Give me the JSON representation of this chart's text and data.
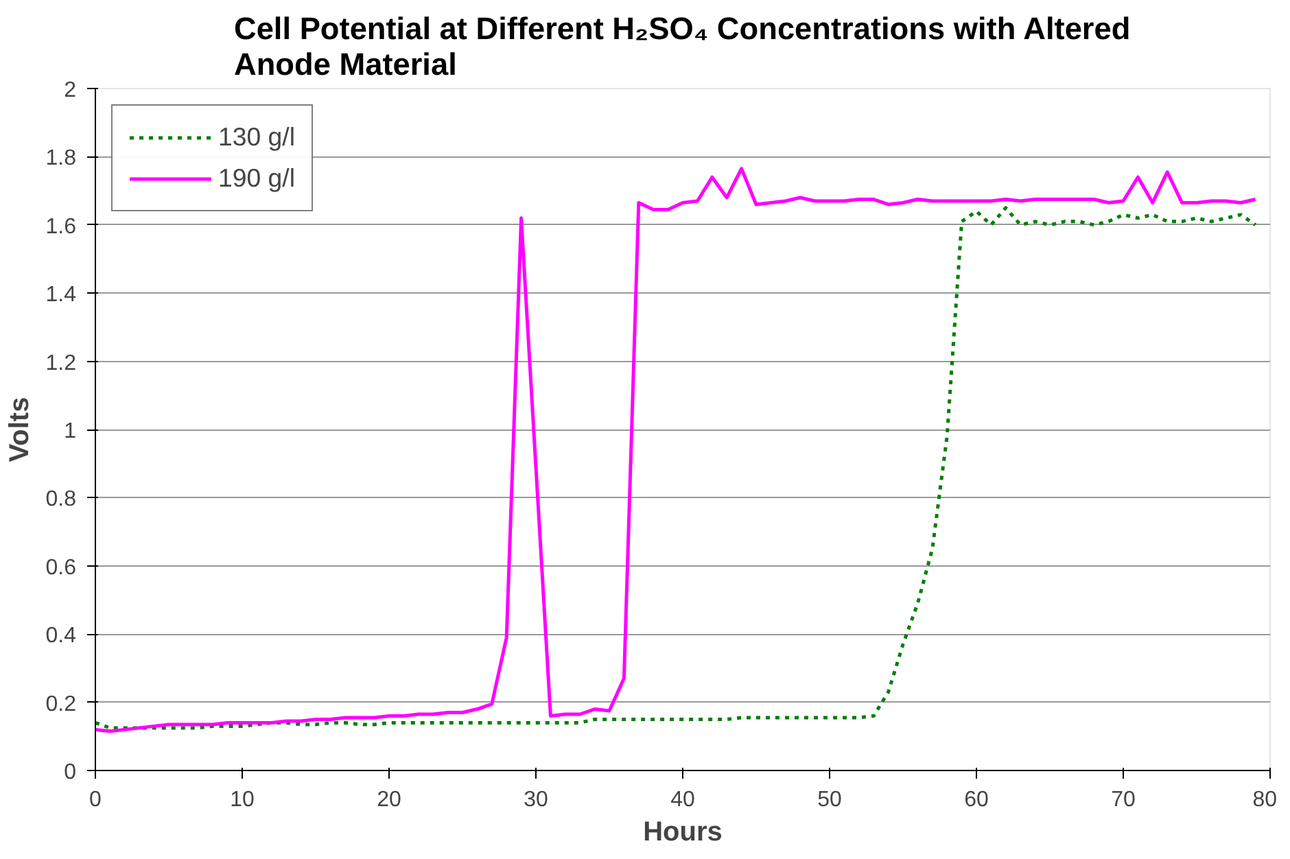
{
  "chart_data": {
    "type": "line",
    "title": "Cell Potential at Different H₂SO₄ Concentrations with Altered Anode Material",
    "xlabel": "Hours",
    "ylabel": "Volts",
    "x": [
      0,
      1,
      2,
      3,
      4,
      5,
      6,
      7,
      8,
      9,
      10,
      11,
      12,
      13,
      14,
      15,
      16,
      17,
      18,
      19,
      20,
      21,
      22,
      23,
      24,
      25,
      26,
      27,
      28,
      29,
      30,
      31,
      32,
      33,
      34,
      35,
      36,
      37,
      38,
      39,
      40,
      41,
      42,
      43,
      44,
      45,
      46,
      47,
      48,
      49,
      50,
      51,
      52,
      53,
      54,
      55,
      56,
      57,
      58,
      59,
      60,
      61,
      62,
      63,
      64,
      65,
      66,
      67,
      68,
      69,
      70,
      71,
      72,
      73,
      74,
      75,
      76,
      77,
      78,
      79
    ],
    "series": [
      {
        "name": "130 g/l",
        "color": "#008000",
        "line_style": "dotted",
        "values": [
          0.14,
          0.125,
          0.125,
          0.125,
          0.125,
          0.125,
          0.125,
          0.125,
          0.13,
          0.13,
          0.13,
          0.135,
          0.14,
          0.14,
          0.135,
          0.135,
          0.14,
          0.14,
          0.135,
          0.135,
          0.14,
          0.14,
          0.14,
          0.14,
          0.14,
          0.14,
          0.14,
          0.14,
          0.14,
          0.14,
          0.14,
          0.14,
          0.14,
          0.14,
          0.15,
          0.15,
          0.15,
          0.15,
          0.15,
          0.15,
          0.15,
          0.15,
          0.15,
          0.15,
          0.155,
          0.155,
          0.155,
          0.155,
          0.155,
          0.155,
          0.155,
          0.155,
          0.155,
          0.16,
          0.23,
          0.37,
          0.49,
          0.65,
          0.98,
          1.61,
          1.64,
          1.6,
          1.65,
          1.6,
          1.61,
          1.6,
          1.61,
          1.61,
          1.6,
          1.61,
          1.63,
          1.62,
          1.63,
          1.61,
          1.61,
          1.62,
          1.61,
          1.62,
          1.63,
          1.6
        ]
      },
      {
        "name": "190 g/l",
        "color": "#ff00ff",
        "line_style": "solid",
        "values": [
          0.12,
          0.115,
          0.12,
          0.125,
          0.13,
          0.135,
          0.135,
          0.135,
          0.135,
          0.14,
          0.14,
          0.14,
          0.14,
          0.145,
          0.145,
          0.15,
          0.15,
          0.155,
          0.155,
          0.155,
          0.16,
          0.16,
          0.165,
          0.165,
          0.17,
          0.17,
          0.18,
          0.195,
          0.39,
          1.62,
          0.89,
          0.16,
          0.165,
          0.165,
          0.18,
          0.175,
          0.27,
          1.665,
          1.645,
          1.645,
          1.665,
          1.67,
          1.74,
          1.68,
          1.765,
          1.66,
          1.665,
          1.67,
          1.68,
          1.67,
          1.67,
          1.67,
          1.675,
          1.675,
          1.66,
          1.665,
          1.675,
          1.67,
          1.67,
          1.67,
          1.67,
          1.67,
          1.675,
          1.67,
          1.675,
          1.675,
          1.675,
          1.675,
          1.675,
          1.665,
          1.67,
          1.74,
          1.665,
          1.755,
          1.665,
          1.665,
          1.67,
          1.67,
          1.665,
          1.675
        ]
      }
    ],
    "xlim": [
      0,
      80
    ],
    "xticks": [
      0,
      10,
      20,
      30,
      40,
      50,
      60,
      70,
      80
    ],
    "ylim": [
      0,
      2
    ],
    "yticks": [
      0,
      0.2,
      0.4,
      0.6,
      0.8,
      1,
      1.2,
      1.4,
      1.6,
      1.8,
      2
    ],
    "grid": "y",
    "legend": "top left",
    "marker": "none"
  }
}
